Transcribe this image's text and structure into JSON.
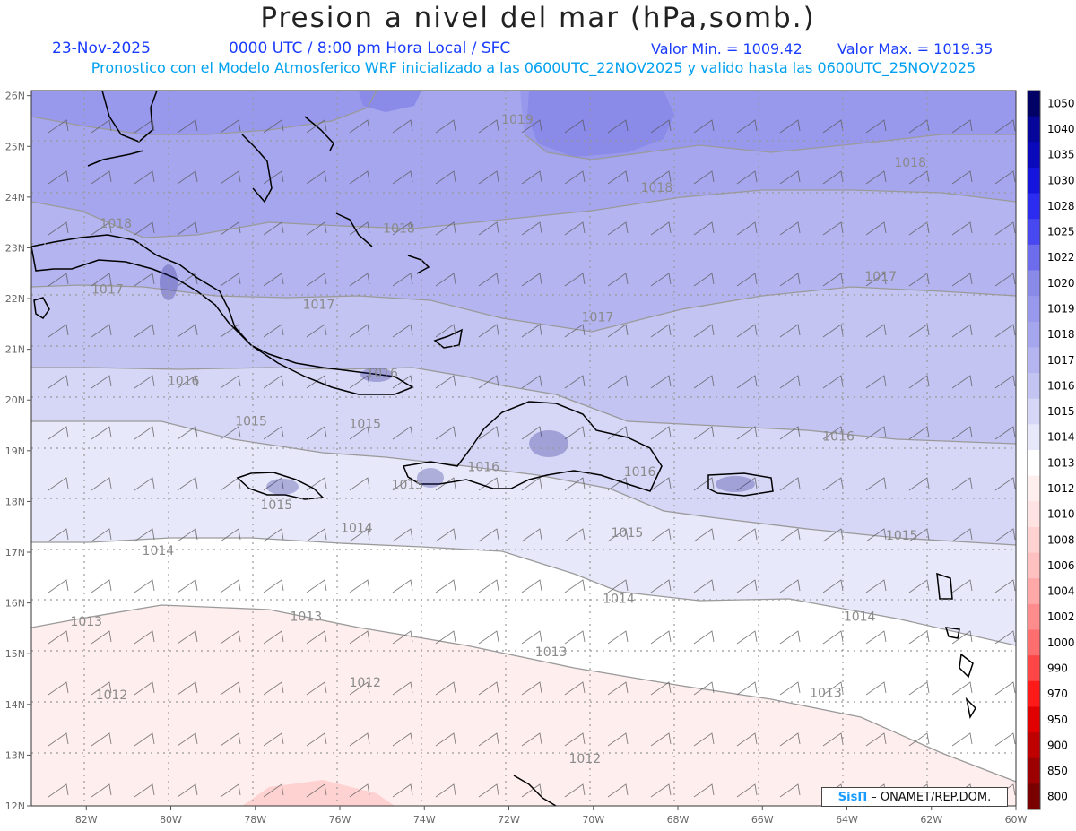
{
  "header": {
    "title": "Presion a nivel del mar (hPa,somb.)",
    "date": "23-Nov-2025",
    "time": "0000 UTC / 8:00 pm Hora Local / SFC",
    "valor_min": "Valor Min. = 1009.42",
    "valor_max": "Valor Max. = 1019.35",
    "forecast_line": "Pronostico con el Modelo Atmosferico WRF inicializado a las 0600UTC_22NOV2025 y valido hasta las  0600UTC_25NOV2025"
  },
  "map": {
    "lat_labels": [
      "26N",
      "25N",
      "24N",
      "23N",
      "22N",
      "21N",
      "20N",
      "19N",
      "18N",
      "17N",
      "16N",
      "15N",
      "14N",
      "13N",
      "12N"
    ],
    "lon_labels": [
      "82W",
      "80W",
      "78W",
      "76W",
      "74W",
      "72W",
      "70W",
      "68W",
      "66W",
      "64W",
      "62W",
      "60W"
    ],
    "contour_labels": [
      {
        "text": "1019",
        "lon": -71.8,
        "lat": 25.45
      },
      {
        "text": "1018",
        "lon": -62.5,
        "lat": 24.6
      },
      {
        "text": "1018",
        "lon": -68.5,
        "lat": 24.1
      },
      {
        "text": "1018",
        "lon": -74.6,
        "lat": 23.3
      },
      {
        "text": "1018",
        "lon": -81.3,
        "lat": 23.4
      },
      {
        "text": "1017",
        "lon": -81.5,
        "lat": 22.1
      },
      {
        "text": "1017",
        "lon": -76.5,
        "lat": 21.8
      },
      {
        "text": "1017",
        "lon": -69.9,
        "lat": 21.55
      },
      {
        "text": "1017",
        "lon": -63.2,
        "lat": 22.35
      },
      {
        "text": "1016",
        "lon": -79.7,
        "lat": 20.3
      },
      {
        "text": "1016",
        "lon": -75.0,
        "lat": 20.45
      },
      {
        "text": "1016",
        "lon": -64.2,
        "lat": 19.2
      },
      {
        "text": "1016",
        "lon": -68.9,
        "lat": 18.5
      },
      {
        "text": "1016",
        "lon": -72.6,
        "lat": 18.6
      },
      {
        "text": "1015",
        "lon": -78.1,
        "lat": 19.5
      },
      {
        "text": "1015",
        "lon": -75.4,
        "lat": 19.45
      },
      {
        "text": "1015",
        "lon": -74.4,
        "lat": 18.25
      },
      {
        "text": "1015",
        "lon": -77.5,
        "lat": 17.85
      },
      {
        "text": "1015",
        "lon": -69.2,
        "lat": 17.3
      },
      {
        "text": "1015",
        "lon": -62.7,
        "lat": 17.25
      },
      {
        "text": "1014",
        "lon": -80.3,
        "lat": 16.95
      },
      {
        "text": "1014",
        "lon": -75.6,
        "lat": 17.4
      },
      {
        "text": "1014",
        "lon": -69.4,
        "lat": 16.0
      },
      {
        "text": "1014",
        "lon": -63.7,
        "lat": 15.65
      },
      {
        "text": "1013",
        "lon": -82.0,
        "lat": 15.55
      },
      {
        "text": "1013",
        "lon": -76.8,
        "lat": 15.65
      },
      {
        "text": "1013",
        "lon": -71.0,
        "lat": 14.95
      },
      {
        "text": "1013",
        "lon": -64.5,
        "lat": 14.15
      },
      {
        "text": "1012",
        "lon": -81.4,
        "lat": 14.1
      },
      {
        "text": "1012",
        "lon": -75.4,
        "lat": 14.35
      },
      {
        "text": "1012",
        "lon": -70.2,
        "lat": 12.85
      }
    ]
  },
  "colorbar": {
    "levels": [
      "800",
      "850",
      "900",
      "950",
      "970",
      "990",
      "1000",
      "1002",
      "1004",
      "1006",
      "1008",
      "1010",
      "1012",
      "1013",
      "1014",
      "1015",
      "1016",
      "1017",
      "1018",
      "1019",
      "1020",
      "1022",
      "1025",
      "1028",
      "1030",
      "1035",
      "1040",
      "1050"
    ],
    "colors": [
      "#7a0000",
      "#9c0000",
      "#be0000",
      "#e00000",
      "#ff1a1a",
      "#ff4646",
      "#ff6e6e",
      "#ff8c8c",
      "#ffa8a8",
      "#ffc0c0",
      "#ffd2d2",
      "#ffe2e2",
      "#ffeeee",
      "#ffffff",
      "#e8e8fb",
      "#d6d6f7",
      "#c4c4f3",
      "#b4b4f0",
      "#a6a6ee",
      "#9898ec",
      "#8a8ae8",
      "#6c6cec",
      "#4848f0",
      "#2c2cf0",
      "#1414dc",
      "#0a0abc",
      "#06069a",
      "#020266"
    ]
  },
  "credit": {
    "logo": "SisΠ",
    "text": "– ONAMET/REP.DOM."
  }
}
